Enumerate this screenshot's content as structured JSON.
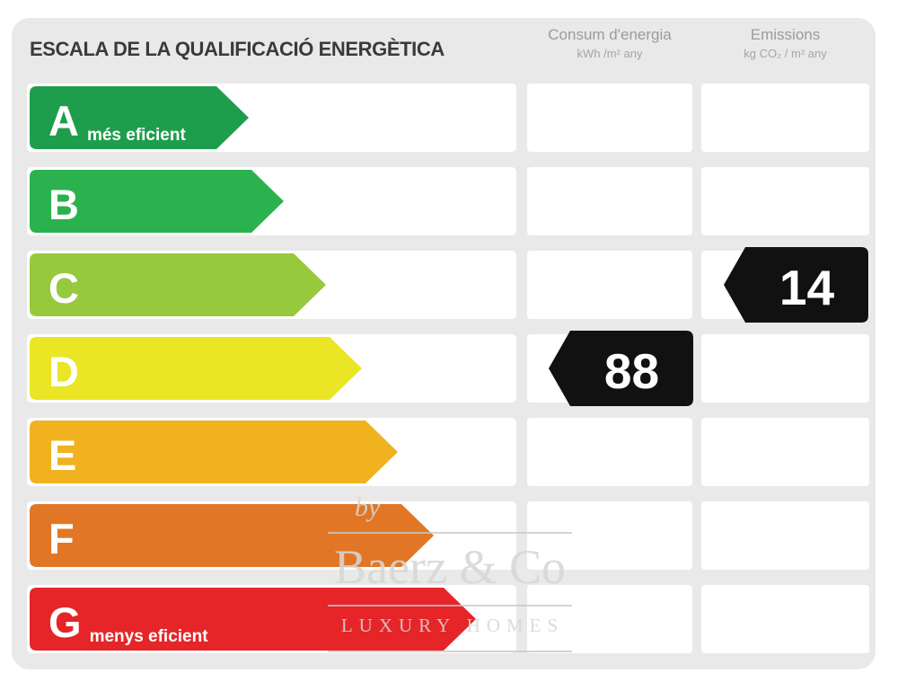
{
  "title": "ESCALA DE LA QUALIFICACIÓ ENERGÈTICA",
  "columns": {
    "consum": {
      "title": "Consum d'energia",
      "subtitle": "kWh /m²  any"
    },
    "emissions": {
      "title": "Emissions",
      "subtitle": "kg CO₂  / m²  any"
    }
  },
  "rows": [
    {
      "letter": "A",
      "sublabel": "més eficient",
      "color": "#1e9e4c",
      "arrow_width": 244,
      "consum": null,
      "emissions": null
    },
    {
      "letter": "B",
      "sublabel": "",
      "color": "#2bb24e",
      "arrow_width": 283,
      "consum": null,
      "emissions": null
    },
    {
      "letter": "C",
      "sublabel": "",
      "color": "#97c93d",
      "arrow_width": 330,
      "consum": null,
      "emissions": "14"
    },
    {
      "letter": "D",
      "sublabel": "",
      "color": "#eae525",
      "arrow_width": 370,
      "consum": "88",
      "emissions": null
    },
    {
      "letter": "E",
      "sublabel": "",
      "color": "#f0b21f",
      "arrow_width": 410,
      "consum": null,
      "emissions": null
    },
    {
      "letter": "F",
      "sublabel": "",
      "color": "#e17726",
      "arrow_width": 450,
      "consum": null,
      "emissions": null
    },
    {
      "letter": "G",
      "sublabel": "menys eficient",
      "color": "#e52528",
      "arrow_width": 497,
      "consum": null,
      "emissions": null
    }
  ],
  "value_arrow_color": "#111111",
  "watermark": {
    "by": "by",
    "name": "Baerz & Co",
    "tagline": "LUXURY HOMES"
  },
  "chart_data": {
    "type": "bar",
    "title": "ESCALA DE LA QUALIFICACIÓ ENERGÈTICA",
    "categories": [
      "A",
      "B",
      "C",
      "D",
      "E",
      "F",
      "G"
    ],
    "category_labels": [
      "A més eficient",
      "B",
      "C",
      "D",
      "E",
      "F",
      "G menys eficient"
    ],
    "series": [
      {
        "name": "Consum d'energia (kWh/m² any)",
        "values": [
          null,
          null,
          null,
          88,
          null,
          null,
          null
        ]
      },
      {
        "name": "Emissions (kg CO₂/m² any)",
        "values": [
          null,
          null,
          14,
          null,
          null,
          null,
          null
        ]
      }
    ],
    "rating_colors": [
      "#1e9e4c",
      "#2bb24e",
      "#97c93d",
      "#eae525",
      "#f0b21f",
      "#e17726",
      "#e52528"
    ],
    "annotations": [
      "rated consumption 88 kWh/m² any on row D",
      "rated emissions 14 kg CO₂/m² any on row C"
    ],
    "legend_position": "top",
    "grid": false
  }
}
